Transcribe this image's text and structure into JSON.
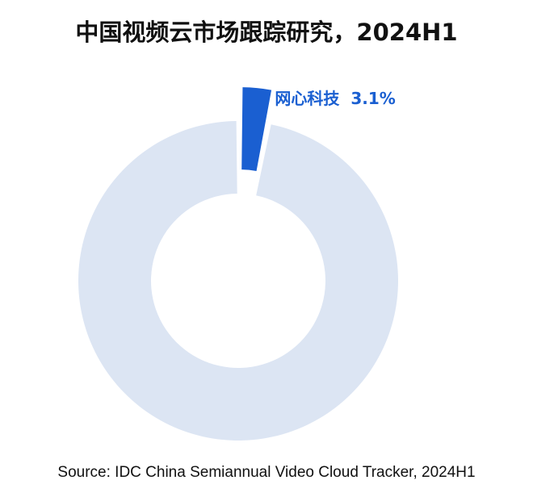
{
  "chart_data": {
    "type": "donut",
    "title": "中国视频云市场跟踪研究，2024H1",
    "categories": [
      "网心科技",
      null
    ],
    "values": [
      3.1,
      96.9
    ],
    "value_labels": [
      "3.1%",
      null
    ],
    "colors": [
      "#1a5fd1",
      "#dce5f3"
    ],
    "source": "Source: IDC China Semiannual Video Cloud Tracker, 2024H1"
  }
}
